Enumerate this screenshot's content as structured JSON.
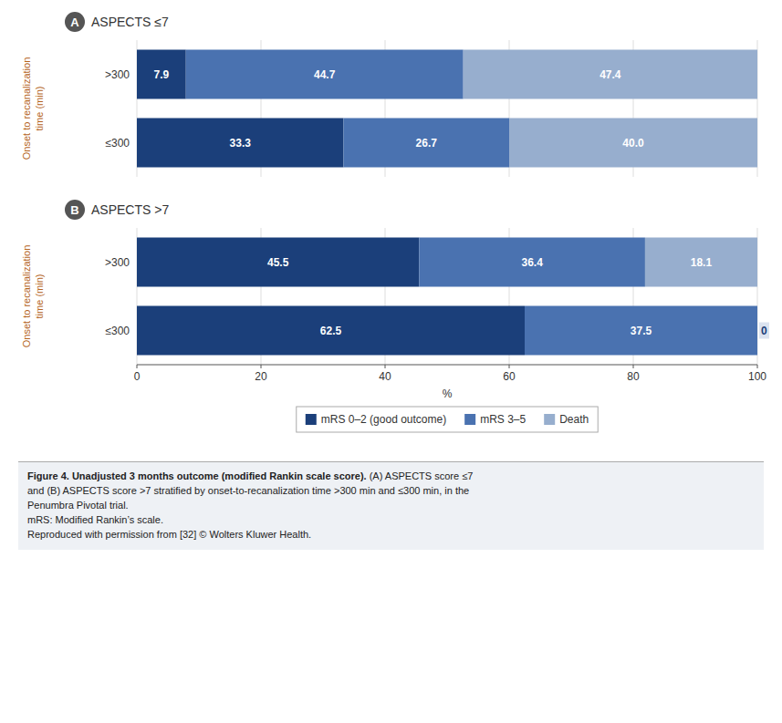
{
  "chart_data": [
    {
      "type": "bar",
      "orientation": "horizontal",
      "stacked": true,
      "data_labels": true,
      "title": "ASPECTS ≤7",
      "annotations": [
        "A"
      ],
      "ylabel": "Onset to recanalization\ntime (min)",
      "categories": [
        ">300",
        "≤300"
      ],
      "series": [
        {
          "color": "#1b3f7a",
          "values": [
            7.9,
            33.3
          ],
          "value_labels": [
            "7.9",
            "33.3"
          ]
        },
        {
          "color": "#4a72b0",
          "values": [
            44.7,
            26.7
          ],
          "value_labels": [
            "44.7",
            "26.7"
          ]
        },
        {
          "color": "#97aece",
          "values": [
            47.4,
            40.0
          ],
          "value_labels": [
            "47.4",
            "40.0"
          ]
        }
      ],
      "xlim": [
        0,
        100
      ],
      "xticks": [
        0,
        20,
        40,
        60,
        80,
        100
      ],
      "grid": true,
      "tick_labels": "y"
    },
    {
      "type": "bar",
      "orientation": "horizontal",
      "stacked": true,
      "data_labels": true,
      "title": "ASPECTS >7",
      "annotations": [
        "B"
      ],
      "ylabel": "Onset to recanalization\ntime (min)",
      "xlabel": "%",
      "categories": [
        ">300",
        "≤300"
      ],
      "series": [
        {
          "name": "mRS 0–2 (good outcome)",
          "color": "#1b3f7a",
          "values": [
            45.5,
            62.5
          ],
          "value_labels": [
            "45.5",
            "62.5"
          ]
        },
        {
          "name": "mRS 3–5",
          "color": "#4a72b0",
          "values": [
            36.4,
            37.5
          ],
          "value_labels": [
            "36.4",
            "37.5"
          ]
        },
        {
          "name": "Death",
          "color": "#97aece",
          "values": [
            18.1,
            0.0
          ],
          "value_labels": [
            "18.1",
            "0"
          ]
        }
      ],
      "xlim": [
        0,
        100
      ],
      "xticks": [
        0,
        20,
        40,
        60,
        80,
        100
      ],
      "grid": true,
      "legend": "bottom"
    }
  ],
  "caption": {
    "bold": "Figure 4. Unadjusted 3 months outcome (modified Rankin scale score).",
    "text": " (A) ASPECTS score ≤7\nand (B) ASPECTS score >7 stratified by onset-to-recanalization time >300 min and ≤300 min, in the\nPenumbra Pivotal trial.\nmRS: Modified Rankin’s scale.\nReproduced with permission from [32] © Wolters Kluwer Health."
  }
}
